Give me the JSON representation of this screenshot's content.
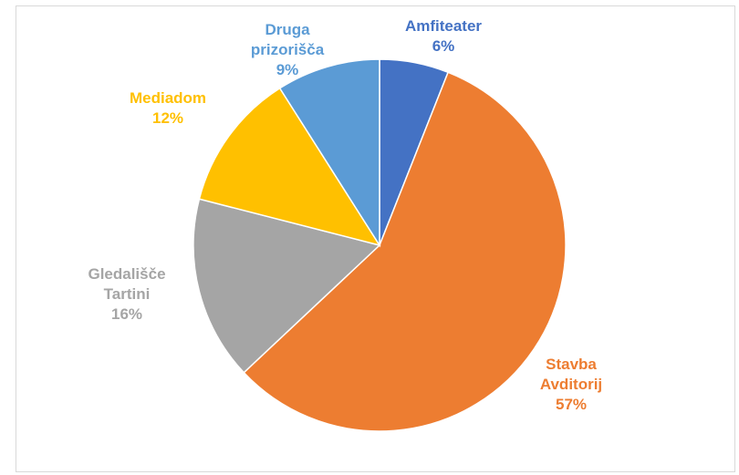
{
  "chart_data": {
    "type": "pie",
    "title": "",
    "slices": [
      {
        "label": [
          "Amfiteater"
        ],
        "pct_label": "6%",
        "value": 6,
        "color": "#4472c4"
      },
      {
        "label": [
          "Stavba",
          "Avditorij"
        ],
        "pct_label": "57%",
        "value": 57,
        "color": "#ed7d31"
      },
      {
        "label": [
          "Gledališče",
          "Tartini"
        ],
        "pct_label": "16%",
        "value": 16,
        "color": "#a5a5a5"
      },
      {
        "label": [
          "Mediadom"
        ],
        "pct_label": "12%",
        "value": 12,
        "color": "#ffc000"
      },
      {
        "label": [
          "Druga",
          "prizorišča"
        ],
        "pct_label": "9%",
        "value": 9,
        "color": "#5b9bd5"
      }
    ],
    "start_angle": "12 o'clock",
    "direction": "clockwise",
    "legend": "none",
    "label_position": "outside"
  }
}
